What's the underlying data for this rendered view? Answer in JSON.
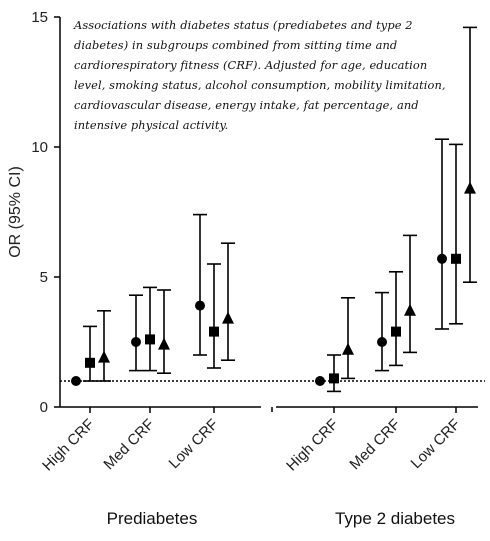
{
  "chart_data": {
    "type": "scatter",
    "ylabel": "OR (95% CI)",
    "ylim": [
      0,
      15
    ],
    "yticks": [
      0,
      5,
      10,
      15
    ],
    "reference_line": 1,
    "annotation": "Associations with diabetes status (prediabetes and type 2 diabetes) in subgroups combined from sitting time and cardiorespiratory fitness (CRF). Adjusted for age, education level, smoking status, alcohol consumption, mobility limitation, cardiovascular disease, energy intake, fat percentage, and intensive physical activity.",
    "groups": [
      {
        "label": "Prediabetes",
        "categories": [
          "High CRF",
          "Med CRF",
          "Low CRF"
        ]
      },
      {
        "label": "Type 2 diabetes",
        "categories": [
          "High CRF",
          "Med CRF",
          "Low CRF"
        ]
      }
    ],
    "series": [
      {
        "marker": "circle",
        "points": [
          {
            "group": 0,
            "category": "High CRF",
            "or": 1.0,
            "lo": 1.0,
            "hi": 1.0
          },
          {
            "group": 0,
            "category": "Med CRF",
            "or": 2.5,
            "lo": 1.4,
            "hi": 4.3
          },
          {
            "group": 0,
            "category": "Low CRF",
            "or": 3.9,
            "lo": 2.0,
            "hi": 7.4
          },
          {
            "group": 1,
            "category": "High CRF",
            "or": 1.0,
            "lo": 1.0,
            "hi": 1.0
          },
          {
            "group": 1,
            "category": "Med CRF",
            "or": 2.5,
            "lo": 1.4,
            "hi": 4.4
          },
          {
            "group": 1,
            "category": "Low CRF",
            "or": 5.7,
            "lo": 3.0,
            "hi": 10.3
          }
        ]
      },
      {
        "marker": "square",
        "points": [
          {
            "group": 0,
            "category": "High CRF",
            "or": 1.7,
            "lo": 1.0,
            "hi": 3.1
          },
          {
            "group": 0,
            "category": "Med CRF",
            "or": 2.6,
            "lo": 1.4,
            "hi": 4.6
          },
          {
            "group": 0,
            "category": "Low CRF",
            "or": 2.9,
            "lo": 1.5,
            "hi": 5.5
          },
          {
            "group": 1,
            "category": "High CRF",
            "or": 1.1,
            "lo": 0.6,
            "hi": 2.0
          },
          {
            "group": 1,
            "category": "Med CRF",
            "or": 2.9,
            "lo": 1.6,
            "hi": 5.2
          },
          {
            "group": 1,
            "category": "Low CRF",
            "or": 5.7,
            "lo": 3.2,
            "hi": 10.1
          }
        ]
      },
      {
        "marker": "triangle",
        "points": [
          {
            "group": 0,
            "category": "High CRF",
            "or": 1.9,
            "lo": 1.0,
            "hi": 3.7
          },
          {
            "group": 0,
            "category": "Med CRF",
            "or": 2.4,
            "lo": 1.3,
            "hi": 4.5
          },
          {
            "group": 0,
            "category": "Low CRF",
            "or": 3.4,
            "lo": 1.8,
            "hi": 6.3
          },
          {
            "group": 1,
            "category": "High CRF",
            "or": 2.2,
            "lo": 1.1,
            "hi": 4.2
          },
          {
            "group": 1,
            "category": "Med CRF",
            "or": 3.7,
            "lo": 2.1,
            "hi": 6.6
          },
          {
            "group": 1,
            "category": "Low CRF",
            "or": 8.4,
            "lo": 4.8,
            "hi": 14.6
          }
        ]
      }
    ]
  }
}
